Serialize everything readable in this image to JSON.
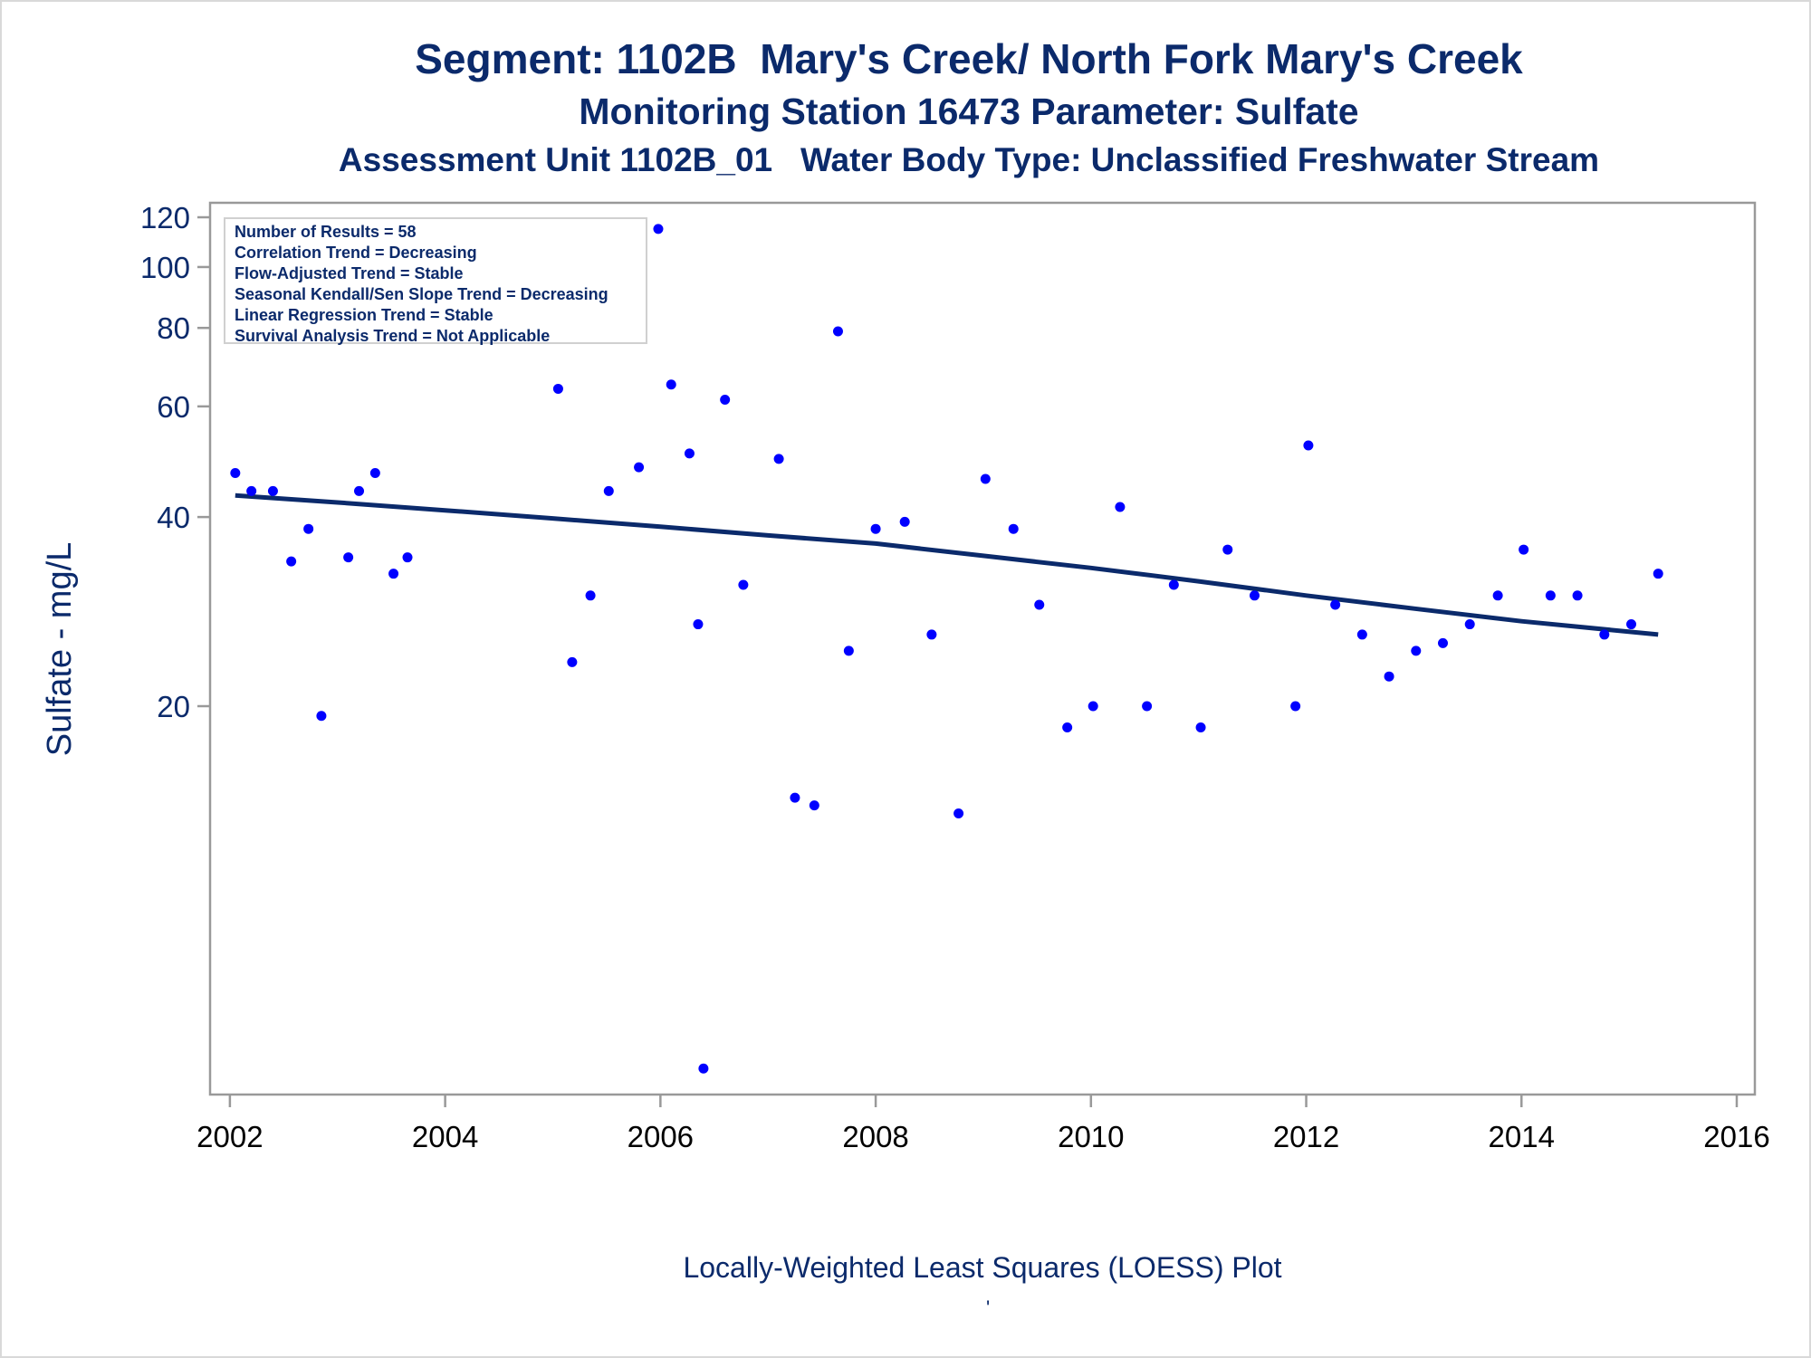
{
  "header": {
    "title": "Segment: 1102B  Mary's Creek/ North Fork Mary's Creek",
    "subtitle": "Monitoring Station 16473 Parameter: Sulfate",
    "subtitle2": "Assessment Unit 1102B_01   Water Body Type: Unclassified Freshwater Stream"
  },
  "legend_box": {
    "lines": [
      "Number of Results = 58",
      "Correlation Trend = Decreasing",
      "Flow-Adjusted Trend = Stable",
      "Seasonal Kendall/Sen Slope Trend = Decreasing",
      "Linear Regression Trend = Stable",
      "Survival Analysis Trend = Not Applicable"
    ]
  },
  "footer": {
    "text": "Locally-Weighted Least Squares (LOESS) Plot",
    "mark": "'"
  },
  "colors": {
    "text": "#0b2a6b",
    "points": "#0000ff",
    "line": "#0b2a6b",
    "axis": "#999999"
  },
  "chart_data": {
    "type": "scatter",
    "title": "Segment: 1102B  Mary's Creek/ North Fork Mary's Creek",
    "ylabel": "Sulfate - mg/L",
    "xlabel": "",
    "yscale": "log",
    "xlim": [
      2002,
      2016
    ],
    "ylim": [
      5.3,
      125
    ],
    "xticks": [
      2002,
      2004,
      2006,
      2008,
      2010,
      2012,
      2014,
      2016
    ],
    "yticks": [
      20,
      40,
      60,
      80,
      100,
      120
    ],
    "grid": false,
    "legend": "top-left",
    "series": [
      {
        "values": [
          [
            2002.05,
            47
          ],
          [
            2002.2,
            44
          ],
          [
            2002.4,
            44
          ],
          [
            2002.57,
            34
          ],
          [
            2002.73,
            38.3
          ],
          [
            2002.85,
            19.3
          ],
          [
            2003.1,
            34.5
          ],
          [
            2003.2,
            44
          ],
          [
            2003.35,
            47
          ],
          [
            2003.52,
            32.5
          ],
          [
            2003.65,
            34.5
          ],
          [
            2005.05,
            64
          ],
          [
            2005.18,
            23.5
          ],
          [
            2005.35,
            30
          ],
          [
            2005.52,
            44
          ],
          [
            2005.8,
            48
          ],
          [
            2005.98,
            115
          ],
          [
            2006.1,
            65
          ],
          [
            2006.27,
            50.5
          ],
          [
            2006.35,
            27
          ],
          [
            2006.4,
            5.3
          ],
          [
            2006.6,
            61.5
          ],
          [
            2006.77,
            31.2
          ],
          [
            2007.1,
            49.5
          ],
          [
            2007.25,
            14.3
          ],
          [
            2007.43,
            13.9
          ],
          [
            2007.65,
            79
          ],
          [
            2007.75,
            24.5
          ],
          [
            2008.0,
            38.3
          ],
          [
            2008.27,
            39.3
          ],
          [
            2008.52,
            26
          ],
          [
            2008.77,
            13.5
          ],
          [
            2009.02,
            46
          ],
          [
            2009.28,
            38.3
          ],
          [
            2009.52,
            29
          ],
          [
            2009.78,
            18.5
          ],
          [
            2010.02,
            20
          ],
          [
            2010.27,
            41.5
          ],
          [
            2010.52,
            20
          ],
          [
            2010.77,
            31.2
          ],
          [
            2011.02,
            18.5
          ],
          [
            2011.27,
            35.5
          ],
          [
            2011.52,
            30
          ],
          [
            2011.9,
            20
          ],
          [
            2012.02,
            52
          ],
          [
            2012.27,
            29
          ],
          [
            2012.52,
            26
          ],
          [
            2012.77,
            22.3
          ],
          [
            2013.02,
            24.5
          ],
          [
            2013.27,
            25.2
          ],
          [
            2013.52,
            27
          ],
          [
            2013.78,
            30
          ],
          [
            2014.02,
            35.5
          ],
          [
            2014.27,
            30
          ],
          [
            2014.52,
            30
          ],
          [
            2014.77,
            26
          ],
          [
            2015.02,
            27
          ],
          [
            2015.27,
            32.5
          ]
        ]
      }
    ],
    "loess": [
      [
        2002.05,
        43.3
      ],
      [
        2003,
        42.2
      ],
      [
        2004,
        41.0
      ],
      [
        2005,
        39.8
      ],
      [
        2006,
        38.6
      ],
      [
        2007,
        37.4
      ],
      [
        2008,
        36.3
      ],
      [
        2009,
        34.7
      ],
      [
        2010,
        33.2
      ],
      [
        2011,
        31.6
      ],
      [
        2012,
        30.0
      ],
      [
        2013,
        28.6
      ],
      [
        2014,
        27.3
      ],
      [
        2015.27,
        26.0
      ]
    ]
  }
}
